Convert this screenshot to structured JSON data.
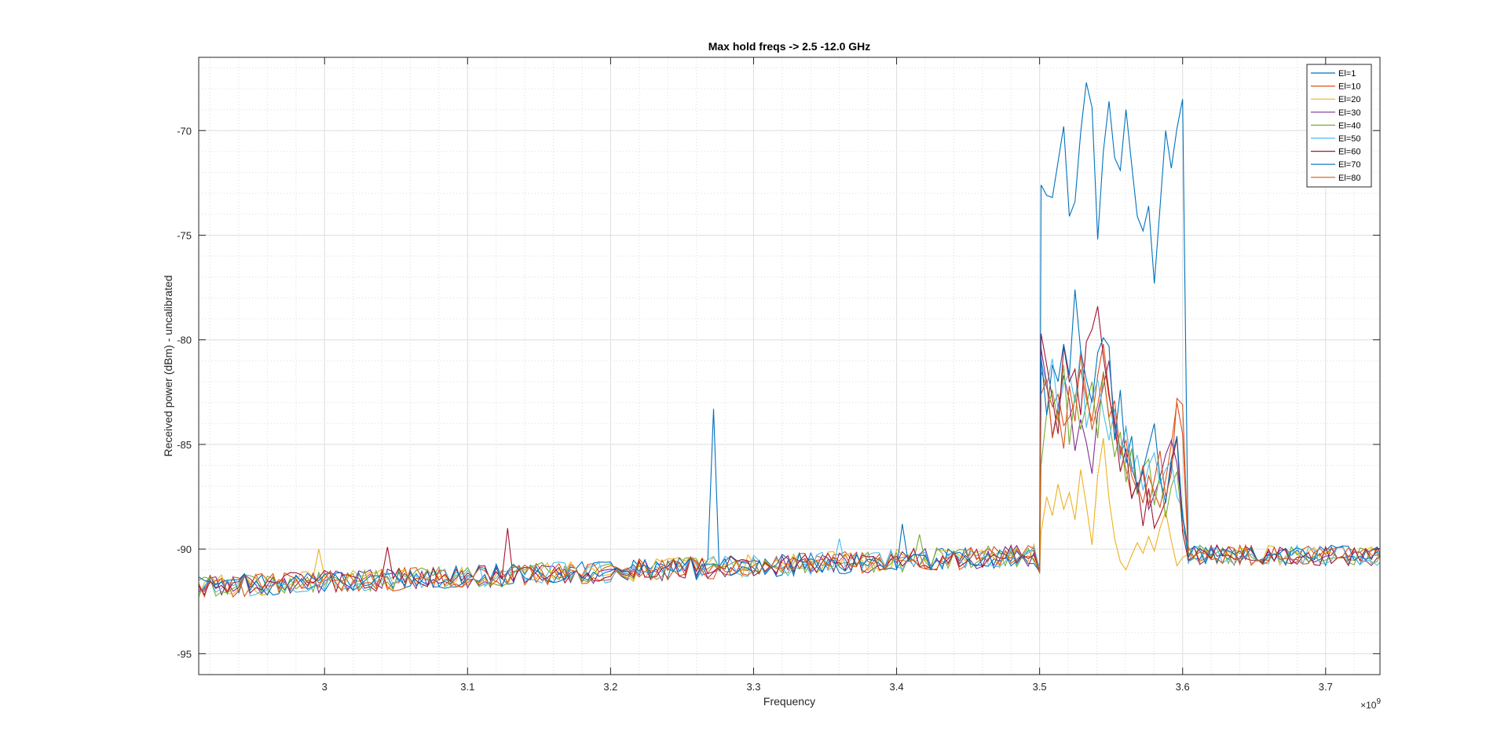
{
  "chart_data": {
    "type": "line",
    "title": "Max hold freqs -> 2.5 -12.0 GHz",
    "xlabel": "Frequency",
    "ylabel": "Received power (dBm) - uncalibrated",
    "x_exponent_base": "×10",
    "x_exponent_power": "9",
    "xlim": [
      2.912,
      3.738
    ],
    "ylim": [
      -96.0,
      -66.5
    ],
    "x_ticks": [
      3.0,
      3.1,
      3.2,
      3.3,
      3.4,
      3.5,
      3.6,
      3.7
    ],
    "x_tick_labels": [
      "3",
      "3.1",
      "3.2",
      "3.3",
      "3.4",
      "3.5",
      "3.6",
      "3.7"
    ],
    "y_ticks": [
      -95,
      -90,
      -85,
      -80,
      -75,
      -70
    ],
    "y_tick_labels": [
      "-95",
      "-90",
      "-85",
      "-80",
      "-75",
      "-70"
    ],
    "grid": true,
    "minor_grid": true,
    "legend_position": "top-right",
    "x_step": 0.004,
    "x_start": 2.912,
    "series": [
      {
        "name": "El=1",
        "color": "#0072bd",
        "band_values": [
          -72.6,
          -73.1,
          -73.2,
          -71.5,
          -69.8,
          -74.1,
          -73.4,
          -70.1,
          -67.7,
          -68.9,
          -75.2,
          -71.0,
          -68.6,
          -71.3,
          -71.9,
          -69.0,
          -71.6,
          -74.1,
          -74.8,
          -73.6,
          -77.3,
          -73.7,
          -70.0,
          -71.8,
          -69.9,
          -68.5
        ]
      },
      {
        "name": "El=10",
        "color": "#d95319",
        "band_values": [
          -81.5,
          -82.3,
          -83.2,
          -82.6,
          -84.1,
          -83.7,
          -82.9,
          -81.4,
          -82.8,
          -83.9,
          -81.7,
          -80.2,
          -82.5,
          -84.6,
          -85.1,
          -86.2,
          -87.5,
          -86.9,
          -87.8,
          -86.5,
          -87.3,
          -88.0,
          -86.7,
          -85.0,
          -83.0,
          -84.5
        ]
      },
      {
        "name": "El=20",
        "color": "#edb120",
        "band_values": [
          -89.2,
          -87.5,
          -88.4,
          -86.9,
          -88.1,
          -87.3,
          -88.6,
          -86.2,
          -87.9,
          -89.8,
          -86.5,
          -84.7,
          -87.6,
          -89.5,
          -90.6,
          -91.0,
          -90.3,
          -89.7,
          -90.2,
          -89.4,
          -90.1,
          -89.0,
          -88.2,
          -89.6,
          -90.8,
          -90.4
        ]
      },
      {
        "name": "El=30",
        "color": "#7e2f8e",
        "band_values": [
          -80.4,
          -82.1,
          -84.6,
          -83.2,
          -81.7,
          -82.9,
          -85.3,
          -83.8,
          -84.9,
          -86.4,
          -83.5,
          -82.2,
          -81.0,
          -83.9,
          -85.4,
          -84.2,
          -86.1,
          -87.0,
          -86.3,
          -88.1,
          -87.4,
          -86.6,
          -85.5,
          -84.8,
          -85.9,
          -88.3
        ]
      },
      {
        "name": "El=40",
        "color": "#77ac30",
        "band_values": [
          -86.0,
          -83.5,
          -82.4,
          -83.9,
          -81.2,
          -85.0,
          -82.6,
          -84.3,
          -83.1,
          -82.0,
          -84.7,
          -81.5,
          -83.8,
          -85.6,
          -84.4,
          -86.8,
          -85.2,
          -87.4,
          -86.1,
          -85.7,
          -87.9,
          -86.4,
          -88.5,
          -87.0,
          -86.3,
          -89.0
        ]
      },
      {
        "name": "El=50",
        "color": "#4dbeee",
        "band_values": [
          -81.0,
          -82.2,
          -80.9,
          -83.4,
          -82.1,
          -81.6,
          -83.0,
          -80.5,
          -84.2,
          -82.8,
          -81.9,
          -83.5,
          -84.8,
          -83.3,
          -85.7,
          -84.1,
          -86.3,
          -85.5,
          -87.2,
          -86.0,
          -85.4,
          -86.9,
          -86.2,
          -85.8,
          -87.5,
          -88.1
        ]
      },
      {
        "name": "El=60",
        "color": "#a2142f",
        "band_values": [
          -79.7,
          -81.2,
          -82.8,
          -84.5,
          -80.3,
          -82.0,
          -81.4,
          -83.6,
          -80.1,
          -79.5,
          -78.4,
          -80.8,
          -82.7,
          -84.0,
          -86.3,
          -85.2,
          -87.6,
          -86.8,
          -88.9,
          -87.1,
          -89.0,
          -88.4,
          -87.7,
          -86.0,
          -84.7,
          -89.2
        ]
      },
      {
        "name": "El=70",
        "color": "#0072bd",
        "band_values": [
          -80.8,
          -83.6,
          -81.2,
          -82.0,
          -80.2,
          -81.7,
          -77.6,
          -80.5,
          -81.9,
          -83.0,
          -80.6,
          -79.9,
          -80.3,
          -84.8,
          -82.4,
          -85.9,
          -84.6,
          -87.3,
          -86.2,
          -85.1,
          -84.0,
          -86.6,
          -87.8,
          -85.7,
          -84.6,
          -88.5
        ]
      },
      {
        "name": "El=80",
        "color": "#d95319",
        "band_values": [
          -82.6,
          -81.9,
          -84.7,
          -83.4,
          -85.2,
          -82.2,
          -83.9,
          -80.7,
          -82.5,
          -84.3,
          -83.1,
          -81.6,
          -83.7,
          -82.9,
          -85.5,
          -84.8,
          -86.5,
          -87.2,
          -86.0,
          -87.9,
          -86.7,
          -85.3,
          -87.5,
          -86.4,
          -82.8,
          -83.1
        ]
      }
    ],
    "spikes": [
      {
        "series": "El=1",
        "x": 3.272,
        "y": -83.3
      },
      {
        "series": "El=60",
        "x": 3.128,
        "y": -89.0
      },
      {
        "series": "El=50",
        "x": 3.36,
        "y": -89.5
      },
      {
        "series": "El=20",
        "x": 2.996,
        "y": -90.0
      },
      {
        "series": "El=40",
        "x": 3.416,
        "y": -89.3
      },
      {
        "series": "El=60",
        "x": 3.044,
        "y": -89.9
      },
      {
        "series": "El=70",
        "x": 3.404,
        "y": -88.8
      }
    ],
    "noise_floor": {
      "x_from": 2.912,
      "x_to": 3.5,
      "y_from": -91.8,
      "y_to": -90.3,
      "jitter": 0.55
    }
  }
}
